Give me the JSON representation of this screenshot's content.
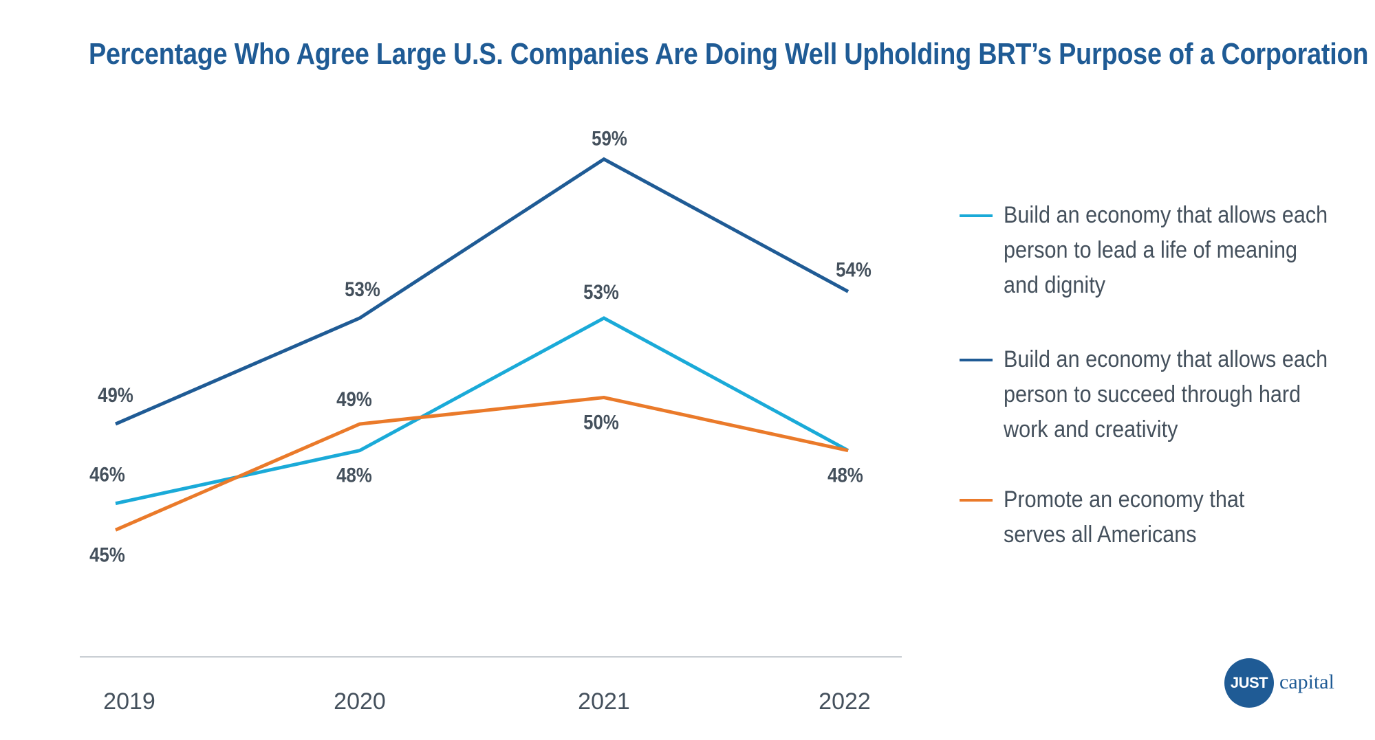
{
  "chart_data": {
    "type": "line",
    "title": "Percentage Who Agree Large U.S. Companies Are Doing Well Upholding BRT’s Purpose of a Corporation",
    "xlabel": "",
    "ylabel": "",
    "categories": [
      "2019",
      "2020",
      "2021",
      "2022"
    ],
    "ylim": [
      40,
      62
    ],
    "grid": false,
    "legend_position": "right",
    "series": [
      {
        "name": "Build an economy that allows each person to lead a life of meaning and dignity",
        "color": "#1aaad8",
        "values": [
          46,
          48,
          53,
          48
        ],
        "labels": [
          "46%",
          "48%",
          "53%",
          "48%"
        ]
      },
      {
        "name": "Build an economy that allows each person to succeed through hard work and creativity",
        "color": "#1f5b95",
        "values": [
          49,
          53,
          59,
          54
        ],
        "labels": [
          "49%",
          "53%",
          "59%",
          "54%"
        ]
      },
      {
        "name": "Promote an economy that serves all Americans",
        "color": "#ea7a2a",
        "values": [
          45,
          49,
          50,
          48
        ],
        "labels": [
          "45%",
          "49%",
          "50%",
          "48%"
        ]
      }
    ]
  },
  "logo": {
    "mark": "JUST",
    "word": "capital"
  }
}
